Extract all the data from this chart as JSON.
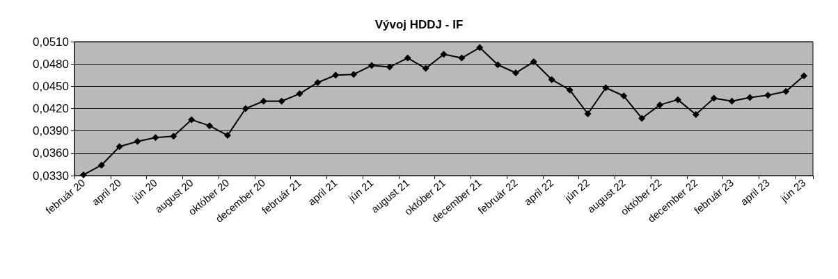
{
  "chart_data": {
    "type": "line",
    "title": "Vývoj HDDJ - IF",
    "categories": [
      "február 20",
      null,
      "april 20",
      null,
      "jún 20",
      null,
      "august 20",
      null,
      "október 20",
      null,
      "december 20",
      null,
      "február 21",
      null,
      "april 21",
      null,
      "jún 21",
      null,
      "august 21",
      null,
      "október 21",
      null,
      "december 21",
      null,
      "február 22",
      null,
      "april 22",
      null,
      "jún 22",
      null,
      "august 22",
      null,
      "október 22",
      null,
      "december 22",
      null,
      "február 23",
      null,
      "april 23",
      null,
      "jún 23"
    ],
    "series": [
      {
        "color": "#000000",
        "values": [
          0.0331,
          0.0344,
          0.0369,
          0.0376,
          0.0381,
          0.0383,
          0.0405,
          0.0397,
          0.0384,
          0.042,
          0.043,
          0.043,
          0.044,
          0.0455,
          0.0465,
          0.0466,
          0.0478,
          0.0476,
          0.0488,
          0.0474,
          0.0493,
          0.0488,
          0.0502,
          0.0479,
          0.0468,
          0.0483,
          0.0459,
          0.0445,
          0.0413,
          0.0448,
          0.0437,
          0.0407,
          0.0425,
          0.0432,
          0.0412,
          0.0434,
          0.043,
          0.0435,
          0.0438,
          0.0443,
          0.0464
        ]
      }
    ],
    "ylim": [
      0.033,
      0.051
    ],
    "yticks": [
      {
        "value": 0.033,
        "label": "0,0330"
      },
      {
        "value": 0.036,
        "label": "0,0360"
      },
      {
        "value": 0.039,
        "label": "0,0390"
      },
      {
        "value": 0.042,
        "label": "0,0420"
      },
      {
        "value": 0.045,
        "label": "0,0450"
      },
      {
        "value": 0.048,
        "label": "0,0480"
      },
      {
        "value": 0.051,
        "label": "0,0510"
      }
    ],
    "grid": "y",
    "marker": "diamond",
    "line_style": "solid"
  }
}
